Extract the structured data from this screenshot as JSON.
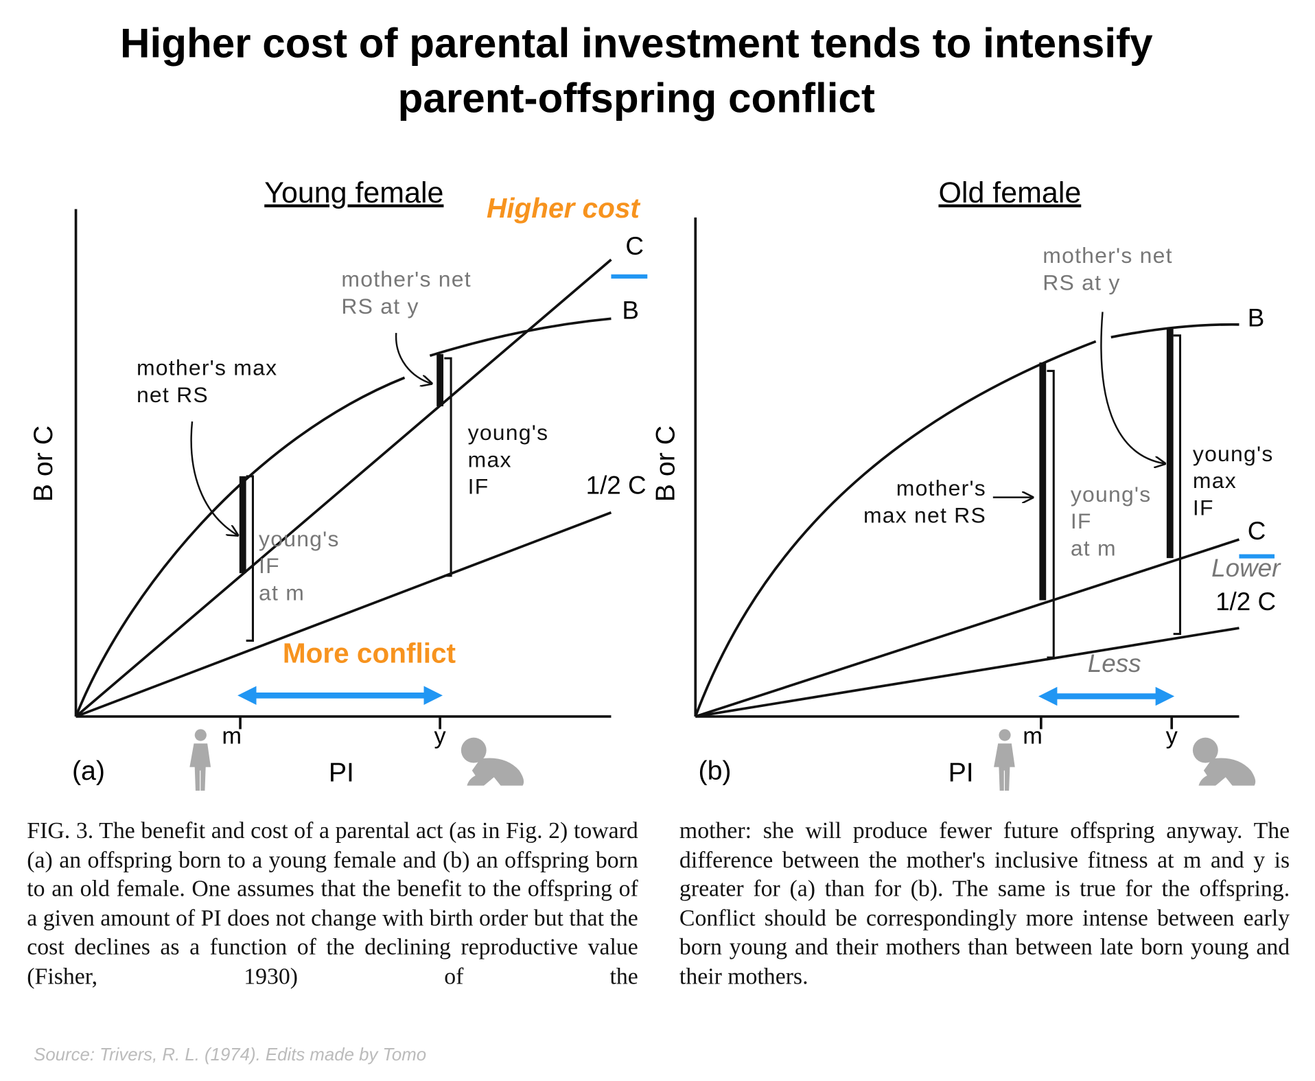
{
  "title": [
    "Higher cost of parental investment tends to intensify",
    "parent-offspring conflict"
  ],
  "panels": [
    {
      "title": "Young female",
      "panel_label": "(a)",
      "y_axis_label": "B or C",
      "x_axis_label": "PI",
      "x_ticks": [
        "m",
        "y"
      ],
      "curve_labels": [
        "C",
        "B",
        "1/2 C"
      ],
      "cost_note": "Higher cost",
      "conflict_note": "More conflict",
      "notes": [
        {
          "lines": [
            "mother's max",
            "net RS"
          ]
        },
        {
          "lines": [
            "mother's net",
            "RS at y"
          ]
        },
        {
          "lines": [
            "young's",
            "IF",
            "at m"
          ]
        },
        {
          "lines": [
            "young's",
            "max",
            "IF"
          ]
        }
      ]
    },
    {
      "title": "Old female",
      "panel_label": "(b)",
      "y_axis_label": "B or C",
      "x_axis_label": "PI",
      "x_ticks": [
        "m",
        "y"
      ],
      "curve_labels": [
        "C",
        "B",
        "1/2 C"
      ],
      "cost_note": "Lower",
      "conflict_note": "Less",
      "notes": [
        {
          "lines": [
            "mother's",
            "max net RS"
          ]
        },
        {
          "lines": [
            "mother's net",
            "RS at y"
          ]
        },
        {
          "lines": [
            "young's",
            "IF",
            "at m"
          ]
        },
        {
          "lines": [
            "young's",
            "max",
            "IF"
          ]
        }
      ]
    }
  ],
  "caption": [
    "FIG. 3. The benefit and cost of a parental act (as in Fig. 2) toward (a) an offspring born to a young female and (b) an offspring born to an old female. One assumes that the benefit to the offspring of a given amount of PI does not change with birth order but that the cost declines as a function of the declining reproductive value (Fisher, 1930) of the",
    "mother: she will produce fewer future offspring anyway. The difference between the mother's inclusive fitness at m and y is greater for (a) than for (b). The same is true for the offspring. Conflict should be correspondingly more intense between early born young and their mothers than between late born young and their mothers."
  ],
  "source": "Source: Trivers, R. L. (1974). Edits made by Tomo"
}
